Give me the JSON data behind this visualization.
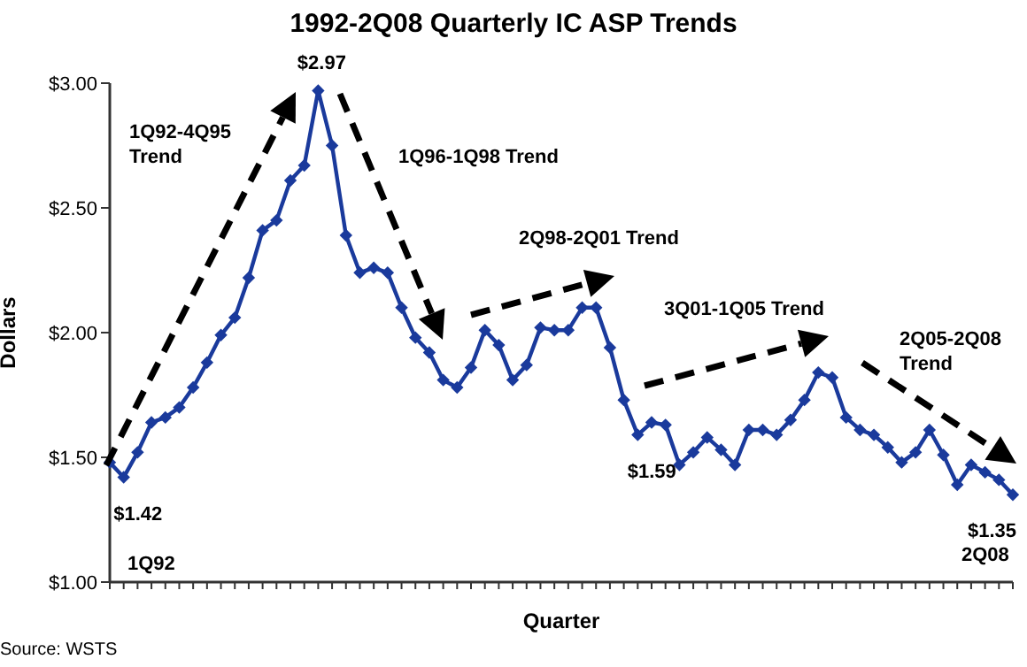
{
  "chart_data": {
    "type": "line",
    "title": "1992-2Q08 Quarterly IC ASP Trends",
    "xlabel": "Quarter",
    "ylabel": "Dollars",
    "categories": [
      null,
      null,
      null,
      null,
      null,
      null,
      null,
      null,
      null,
      null,
      null,
      null,
      null,
      null,
      null,
      null,
      null,
      null,
      null,
      null,
      null,
      null,
      null,
      null,
      null,
      null,
      null,
      null,
      null,
      null,
      null,
      null,
      null,
      null,
      null,
      null,
      null,
      null,
      null,
      null,
      null,
      null,
      null,
      null,
      null,
      null,
      null,
      null,
      null,
      null,
      null,
      null,
      null,
      null,
      null,
      null,
      null,
      null,
      null,
      null,
      null,
      null,
      null,
      null,
      null,
      null
    ],
    "series": [
      {
        "color": "#1a3a9c",
        "values": [
          1.48,
          1.42,
          1.52,
          1.64,
          1.66,
          1.7,
          1.78,
          1.88,
          1.99,
          2.06,
          2.22,
          2.41,
          2.45,
          2.61,
          2.67,
          2.97,
          2.75,
          2.39,
          2.24,
          2.26,
          2.24,
          2.1,
          1.98,
          1.92,
          1.81,
          1.78,
          1.86,
          2.01,
          1.95,
          1.81,
          1.87,
          2.02,
          2.01,
          2.01,
          2.1,
          2.1,
          1.94,
          1.73,
          1.59,
          1.64,
          1.63,
          1.47,
          1.52,
          1.58,
          1.53,
          1.47,
          1.61,
          1.61,
          1.59,
          1.65,
          1.73,
          1.84,
          1.82,
          1.66,
          1.61,
          1.59,
          1.54,
          1.48,
          1.52,
          1.61,
          1.51,
          1.39,
          1.47,
          1.44,
          1.41,
          1.35
        ],
        "value_labels": [
          null,
          "$1.42",
          null,
          null,
          null,
          null,
          null,
          null,
          null,
          null,
          null,
          null,
          null,
          null,
          null,
          "$2.97",
          null,
          null,
          null,
          null,
          null,
          null,
          null,
          null,
          null,
          null,
          null,
          null,
          null,
          null,
          null,
          null,
          null,
          null,
          null,
          null,
          null,
          null,
          "$1.59",
          null,
          null,
          null,
          null,
          null,
          null,
          null,
          null,
          null,
          null,
          null,
          null,
          null,
          null,
          null,
          null,
          null,
          null,
          null,
          null,
          null,
          null,
          null,
          null,
          null,
          null,
          "$1.35"
        ]
      }
    ],
    "ylim": [
      1,
      3
    ],
    "yticks": [
      {
        "value": 1,
        "label": "$1.00"
      },
      {
        "value": 1.5,
        "label": "$1.50"
      },
      {
        "value": 2,
        "label": "$2.00"
      },
      {
        "value": 2.5,
        "label": "$2.50"
      },
      {
        "value": 3,
        "label": "$3.00"
      }
    ],
    "tick_labels": "y",
    "grid": false,
    "legend": false,
    "marker": "diamond",
    "line_style": "solid",
    "annotations": [
      "1Q92-4Q95 Trend",
      "1Q96-1Q98 Trend",
      "2Q98-2Q01 Trend",
      "3Q01-1Q05 Trend",
      "2Q05-2Q08 Trend",
      "1Q92",
      "2Q08",
      "Source: WSTS"
    ]
  }
}
